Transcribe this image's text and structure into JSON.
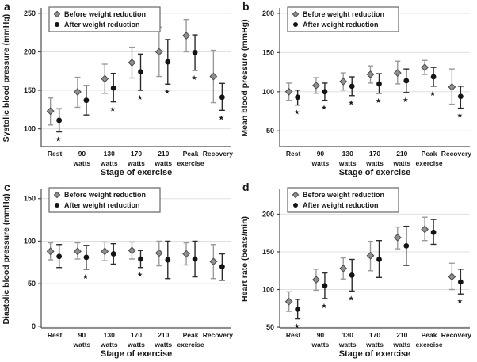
{
  "colors": {
    "before_fill": "#8f8f8f",
    "before_stroke": "#4a4a4a",
    "before_errbar": "#9a9a9a",
    "after_fill": "#141414",
    "after_errbar": "#2b2b2b",
    "grid": "#e0e0e0",
    "axis": "#4d4d4d",
    "legend_border": "#666666",
    "text": "#1a1a1a"
  },
  "chart_data": [
    {
      "panel_label": "a",
      "type": "scatter",
      "title": "",
      "ylabel": "Systolic blood pressure (mmHg)",
      "xlabel": "Stage of exercise",
      "categories": [
        [
          "Rest"
        ],
        [
          "90",
          "watts"
        ],
        [
          "130",
          "watts"
        ],
        [
          "170",
          "watts"
        ],
        [
          "210",
          "watts"
        ],
        [
          "Peak",
          "exercise"
        ],
        [
          "Recovery"
        ]
      ],
      "yticks": [
        100,
        150,
        200,
        250
      ],
      "ylim": [
        77,
        255
      ],
      "grid": true,
      "legend_position": "top-left",
      "series": [
        {
          "name": "Before weight reduction",
          "marker": "diamond",
          "values": [
            123,
            148,
            165,
            186,
            200,
            221,
            168
          ],
          "err_lo": [
            105,
            128,
            146,
            166,
            168,
            200,
            134
          ],
          "err_hi": [
            140,
            167,
            184,
            206,
            232,
            242,
            202
          ]
        },
        {
          "name": "After weight reduction",
          "marker": "circle",
          "values": [
            111,
            137,
            153,
            174,
            187,
            199,
            141
          ],
          "err_lo": [
            96,
            118,
            135,
            150,
            158,
            176,
            124
          ],
          "err_hi": [
            126,
            156,
            172,
            197,
            216,
            222,
            159
          ],
          "significant": [
            true,
            false,
            true,
            true,
            true,
            true,
            true
          ]
        }
      ]
    },
    {
      "panel_label": "b",
      "type": "scatter",
      "title": "",
      "ylabel": "Mean blood pressure (mmHg)",
      "xlabel": "Stage of exercise",
      "categories": [
        [
          "Rest"
        ],
        [
          "90",
          "watts"
        ],
        [
          "130",
          "watts"
        ],
        [
          "170",
          "watts"
        ],
        [
          "210",
          "watts"
        ],
        [
          "Peak",
          "exercise"
        ],
        [
          "Recovery"
        ]
      ],
      "yticks": [
        50,
        100,
        150,
        200
      ],
      "ylim": [
        30,
        205
      ],
      "grid": true,
      "legend_position": "top-left",
      "series": [
        {
          "name": "Before weight reduction",
          "marker": "diamond",
          "values": [
            100,
            108,
            113,
            122,
            124,
            131,
            106
          ],
          "err_lo": [
            89,
            98,
            102,
            111,
            110,
            122,
            84
          ],
          "err_hi": [
            111,
            118,
            124,
            133,
            139,
            140,
            129
          ]
        },
        {
          "name": "After weight reduction",
          "marker": "circle",
          "values": [
            93,
            100,
            107,
            110,
            114,
            119,
            94
          ],
          "err_lo": [
            83,
            89,
            95,
            98,
            99,
            107,
            79
          ],
          "err_hi": [
            102,
            111,
            119,
            123,
            129,
            131,
            107
          ],
          "significant": [
            true,
            true,
            true,
            true,
            true,
            true,
            true
          ]
        }
      ]
    },
    {
      "panel_label": "c",
      "type": "scatter",
      "title": "",
      "ylabel": "Diastolic blood pressure (mmHg)",
      "xlabel": "Stage of exercise",
      "categories": [
        [
          "Rest"
        ],
        [
          "90",
          "watts"
        ],
        [
          "130",
          "watts"
        ],
        [
          "170",
          "watts"
        ],
        [
          "210",
          "watts"
        ],
        [
          "Peak",
          "exercise"
        ],
        [
          "Recovery"
        ]
      ],
      "yticks": [
        0,
        50,
        100,
        150
      ],
      "ylim": [
        -2,
        160
      ],
      "grid": true,
      "legend_position": "top-left",
      "series": [
        {
          "name": "Before weight reduction",
          "marker": "diamond",
          "values": [
            88,
            88,
            88,
            89,
            86,
            85,
            76
          ],
          "err_lo": [
            78,
            79,
            77,
            79,
            71,
            72,
            56
          ],
          "err_hi": [
            98,
            98,
            99,
            99,
            100,
            98,
            96
          ]
        },
        {
          "name": "After weight reduction",
          "marker": "circle",
          "values": [
            82,
            81,
            85,
            79,
            78,
            79,
            70
          ],
          "err_lo": [
            69,
            67,
            73,
            69,
            56,
            58,
            54
          ],
          "err_hi": [
            96,
            95,
            97,
            89,
            100,
            100,
            85
          ],
          "significant": [
            false,
            true,
            false,
            true,
            false,
            false,
            false
          ]
        }
      ]
    },
    {
      "panel_label": "d",
      "type": "scatter",
      "title": "",
      "ylabel": "Heart rate (beats/min)",
      "xlabel": "Stage of exercise",
      "categories": [
        [
          "Rest"
        ],
        [
          "90",
          "watts"
        ],
        [
          "130",
          "watts"
        ],
        [
          "170",
          "watts"
        ],
        [
          "210",
          "watts"
        ],
        [
          "Peak",
          "exercise"
        ],
        [
          "Recovery"
        ]
      ],
      "yticks": [
        50,
        100,
        150,
        200
      ],
      "ylim": [
        49,
        232
      ],
      "grid": true,
      "legend_position": "top-left",
      "series": [
        {
          "name": "Before weight reduction",
          "marker": "diamond",
          "values": [
            84,
            113,
            128,
            145,
            169,
            180,
            117
          ],
          "err_lo": [
            71,
            99,
            114,
            125,
            154,
            165,
            100
          ],
          "err_hi": [
            97,
            127,
            142,
            164,
            183,
            196,
            135
          ]
        },
        {
          "name": "After weight reduction",
          "marker": "circle",
          "values": [
            74,
            105,
            119,
            140,
            158,
            176,
            110
          ],
          "err_lo": [
            61,
            88,
            98,
            116,
            132,
            160,
            94
          ],
          "err_hi": [
            87,
            122,
            140,
            165,
            184,
            193,
            127
          ],
          "significant": [
            true,
            true,
            true,
            false,
            false,
            false,
            true
          ]
        }
      ]
    }
  ]
}
